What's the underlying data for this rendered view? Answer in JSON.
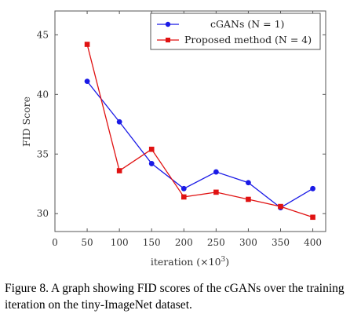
{
  "chart_data": {
    "type": "line",
    "xlabel_text": "iteration (×10",
    "xlabel_sup": "3",
    "xlabel_close": ")",
    "ylabel": "FID Score",
    "xlim": [
      0,
      420
    ],
    "ylim": [
      28.5,
      47
    ],
    "x_ticks": [
      0,
      50,
      100,
      150,
      200,
      250,
      300,
      350,
      400
    ],
    "y_ticks": [
      30,
      35,
      40,
      45
    ],
    "grid": false,
    "legend_position": "top-right",
    "series": [
      {
        "name": "cGANs (N = 1)",
        "color": "#1a1ae6",
        "marker": "circle",
        "x": [
          50,
          100,
          150,
          200,
          250,
          300,
          350,
          400
        ],
        "y": [
          41.1,
          37.7,
          34.2,
          32.1,
          33.5,
          32.6,
          30.5,
          32.1
        ]
      },
      {
        "name": "Proposed method (N = 4)",
        "color": "#e01212",
        "marker": "square",
        "x": [
          50,
          100,
          150,
          200,
          250,
          300,
          350,
          400
        ],
        "y": [
          44.2,
          33.6,
          35.4,
          31.4,
          31.8,
          31.2,
          30.6,
          29.7
        ]
      }
    ]
  },
  "caption": "Figure 8. A graph showing FID scores of the cGANs over the training iteration on the tiny-ImageNet dataset."
}
